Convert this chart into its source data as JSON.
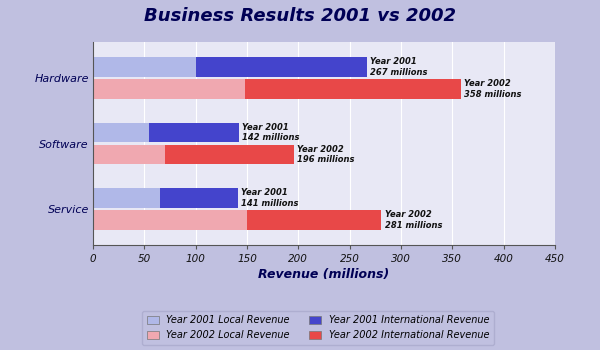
{
  "title": "Business Results 2001 vs 2002",
  "categories": [
    "Hardware",
    "Software",
    "Service"
  ],
  "year2001_local": [
    100,
    55,
    65
  ],
  "year2001_international": [
    167,
    87,
    76
  ],
  "year2002_local": [
    148,
    70,
    150
  ],
  "year2002_international": [
    210,
    126,
    131
  ],
  "year2001_totals": [
    267,
    142,
    141
  ],
  "year2002_totals": [
    358,
    196,
    281
  ],
  "color_2001_local": "#b0b8e8",
  "color_2001_international": "#4444cc",
  "color_2002_local": "#f0a8b0",
  "color_2002_international": "#e84848",
  "xlabel": "Revenue (millions)",
  "xlim": [
    0,
    450
  ],
  "xticks": [
    0,
    50,
    100,
    150,
    200,
    250,
    300,
    350,
    400,
    450
  ],
  "bg_outer": "#c0c0e0",
  "bg_plot": "#e8e8f5",
  "legend_labels": [
    "Year 2001 Local Revenue",
    "Year 2002 Local Revenue",
    "Year 2001 International Revenue",
    "Year 2002 International Revenue"
  ]
}
